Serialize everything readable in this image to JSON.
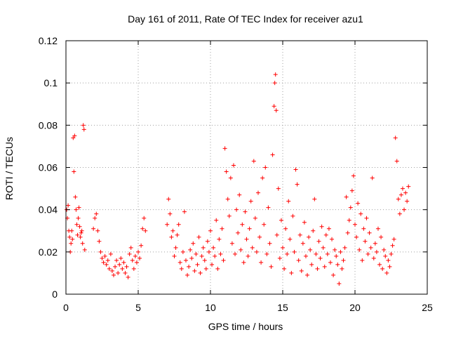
{
  "chart_data": {
    "type": "scatter",
    "title": "Day 161 of 2011, Rate Of TEC Index for receiver azu1",
    "xlabel": "GPS time / hours",
    "ylabel": "ROTI / TECUs",
    "xlim": [
      0,
      25
    ],
    "ylim": [
      0,
      0.12
    ],
    "x_ticks": [
      "0",
      "5",
      "10",
      "15",
      "20",
      "25"
    ],
    "y_ticks": [
      "0",
      "0.02",
      "0.04",
      "0.06",
      "0.08",
      "0.1",
      "0.12"
    ],
    "grid": true,
    "marker": "+",
    "colors": {
      "series": "#ff0000",
      "grid": "#a0a0a0",
      "axes": "#000000"
    },
    "series": [
      {
        "points": [
          [
            0.05,
            0.04
          ],
          [
            0.1,
            0.036
          ],
          [
            0.15,
            0.042
          ],
          [
            0.2,
            0.03
          ],
          [
            0.25,
            0.027
          ],
          [
            0.3,
            0.02
          ],
          [
            0.35,
            0.024
          ],
          [
            0.4,
            0.03
          ],
          [
            0.45,
            0.026
          ],
          [
            0.5,
            0.074
          ],
          [
            0.55,
            0.058
          ],
          [
            0.6,
            0.075
          ],
          [
            0.65,
            0.046
          ],
          [
            0.7,
            0.04
          ],
          [
            0.75,
            0.033
          ],
          [
            0.8,
            0.028
          ],
          [
            0.85,
            0.036
          ],
          [
            0.9,
            0.041
          ],
          [
            0.95,
            0.032
          ],
          [
            1.0,
            0.027
          ],
          [
            1.05,
            0.029
          ],
          [
            1.1,
            0.03
          ],
          [
            1.15,
            0.024
          ],
          [
            1.2,
            0.08
          ],
          [
            1.25,
            0.078
          ],
          [
            1.3,
            0.021
          ],
          [
            1.9,
            0.031
          ],
          [
            2.0,
            0.036
          ],
          [
            2.1,
            0.038
          ],
          [
            2.2,
            0.03
          ],
          [
            2.3,
            0.025
          ],
          [
            2.4,
            0.02
          ],
          [
            2.5,
            0.017
          ],
          [
            2.6,
            0.015
          ],
          [
            2.7,
            0.018
          ],
          [
            2.8,
            0.014
          ],
          [
            2.9,
            0.016
          ],
          [
            3.0,
            0.012
          ],
          [
            3.1,
            0.019
          ],
          [
            3.2,
            0.011
          ],
          [
            3.3,
            0.009
          ],
          [
            3.4,
            0.013
          ],
          [
            3.5,
            0.016
          ],
          [
            3.6,
            0.01
          ],
          [
            3.7,
            0.014
          ],
          [
            3.8,
            0.017
          ],
          [
            3.9,
            0.012
          ],
          [
            4.0,
            0.015
          ],
          [
            4.1,
            0.01
          ],
          [
            4.2,
            0.013
          ],
          [
            4.3,
            0.008
          ],
          [
            4.4,
            0.019
          ],
          [
            4.5,
            0.022
          ],
          [
            4.6,
            0.016
          ],
          [
            4.7,
            0.012
          ],
          [
            4.8,
            0.018
          ],
          [
            4.9,
            0.015
          ],
          [
            5.0,
            0.02
          ],
          [
            5.1,
            0.017
          ],
          [
            5.2,
            0.023
          ],
          [
            5.3,
            0.031
          ],
          [
            5.4,
            0.036
          ],
          [
            5.5,
            0.03
          ],
          [
            7.0,
            0.033
          ],
          [
            7.1,
            0.045
          ],
          [
            7.2,
            0.038
          ],
          [
            7.3,
            0.027
          ],
          [
            7.4,
            0.03
          ],
          [
            7.5,
            0.018
          ],
          [
            7.6,
            0.022
          ],
          [
            7.7,
            0.028
          ],
          [
            7.8,
            0.033
          ],
          [
            7.9,
            0.015
          ],
          [
            8.0,
            0.012
          ],
          [
            8.1,
            0.02
          ],
          [
            8.2,
            0.039
          ],
          [
            8.3,
            0.016
          ],
          [
            8.4,
            0.009
          ],
          [
            8.5,
            0.013
          ],
          [
            8.6,
            0.021
          ],
          [
            8.7,
            0.017
          ],
          [
            8.8,
            0.024
          ],
          [
            8.9,
            0.011
          ],
          [
            9.0,
            0.019
          ],
          [
            9.1,
            0.014
          ],
          [
            9.2,
            0.027
          ],
          [
            9.3,
            0.01
          ],
          [
            9.4,
            0.018
          ],
          [
            9.5,
            0.022
          ],
          [
            9.6,
            0.016
          ],
          [
            9.7,
            0.012
          ],
          [
            9.8,
            0.025
          ],
          [
            9.9,
            0.02
          ],
          [
            10.0,
            0.03
          ],
          [
            10.1,
            0.014
          ],
          [
            10.2,
            0.022
          ],
          [
            10.3,
            0.018
          ],
          [
            10.4,
            0.035
          ],
          [
            10.5,
            0.012
          ],
          [
            10.6,
            0.026
          ],
          [
            10.7,
            0.019
          ],
          [
            10.8,
            0.031
          ],
          [
            10.9,
            0.016
          ],
          [
            11.0,
            0.069
          ],
          [
            11.1,
            0.058
          ],
          [
            11.2,
            0.045
          ],
          [
            11.3,
            0.037
          ],
          [
            11.4,
            0.055
          ],
          [
            11.5,
            0.024
          ],
          [
            11.6,
            0.061
          ],
          [
            11.7,
            0.019
          ],
          [
            11.8,
            0.04
          ],
          [
            11.9,
            0.029
          ],
          [
            12.0,
            0.047
          ],
          [
            12.1,
            0.021
          ],
          [
            12.2,
            0.033
          ],
          [
            12.3,
            0.015
          ],
          [
            12.4,
            0.039
          ],
          [
            12.5,
            0.026
          ],
          [
            12.6,
            0.018
          ],
          [
            12.7,
            0.031
          ],
          [
            12.8,
            0.044
          ],
          [
            12.9,
            0.022
          ],
          [
            13.0,
            0.063
          ],
          [
            13.1,
            0.036
          ],
          [
            13.2,
            0.02
          ],
          [
            13.3,
            0.048
          ],
          [
            13.4,
            0.027
          ],
          [
            13.5,
            0.015
          ],
          [
            13.6,
            0.055
          ],
          [
            13.7,
            0.033
          ],
          [
            13.8,
            0.06
          ],
          [
            13.9,
            0.019
          ],
          [
            14.0,
            0.041
          ],
          [
            14.1,
            0.024
          ],
          [
            14.2,
            0.013
          ],
          [
            14.3,
            0.066
          ],
          [
            14.4,
            0.089
          ],
          [
            14.45,
            0.1
          ],
          [
            14.5,
            0.104
          ],
          [
            14.55,
            0.087
          ],
          [
            14.6,
            0.028
          ],
          [
            14.7,
            0.05
          ],
          [
            14.8,
            0.017
          ],
          [
            14.9,
            0.035
          ],
          [
            15.0,
            0.022
          ],
          [
            15.1,
            0.012
          ],
          [
            15.2,
            0.031
          ],
          [
            15.3,
            0.019
          ],
          [
            15.4,
            0.044
          ],
          [
            15.5,
            0.026
          ],
          [
            15.6,
            0.01
          ],
          [
            15.7,
            0.037
          ],
          [
            15.8,
            0.02
          ],
          [
            15.9,
            0.059
          ],
          [
            16.0,
            0.052
          ],
          [
            16.1,
            0.016
          ],
          [
            16.2,
            0.028
          ],
          [
            16.3,
            0.011
          ],
          [
            16.4,
            0.024
          ],
          [
            16.5,
            0.034
          ],
          [
            16.6,
            0.018
          ],
          [
            16.7,
            0.009
          ],
          [
            16.8,
            0.027
          ],
          [
            16.9,
            0.021
          ],
          [
            17.0,
            0.014
          ],
          [
            17.1,
            0.03
          ],
          [
            17.2,
            0.045
          ],
          [
            17.3,
            0.019
          ],
          [
            17.4,
            0.012
          ],
          [
            17.5,
            0.025
          ],
          [
            17.6,
            0.017
          ],
          [
            17.7,
            0.032
          ],
          [
            17.8,
            0.022
          ],
          [
            17.9,
            0.013
          ],
          [
            18.0,
            0.028
          ],
          [
            18.1,
            0.019
          ],
          [
            18.2,
            0.031
          ],
          [
            18.3,
            0.015
          ],
          [
            18.4,
            0.026
          ],
          [
            18.5,
            0.009
          ],
          [
            18.6,
            0.021
          ],
          [
            18.7,
            0.018
          ],
          [
            18.8,
            0.014
          ],
          [
            18.9,
            0.005
          ],
          [
            19.0,
            0.02
          ],
          [
            19.1,
            0.012
          ],
          [
            19.2,
            0.016
          ],
          [
            19.3,
            0.022
          ],
          [
            19.4,
            0.046
          ],
          [
            19.5,
            0.029
          ],
          [
            19.6,
            0.035
          ],
          [
            19.7,
            0.041
          ],
          [
            19.8,
            0.049
          ],
          [
            19.9,
            0.056
          ],
          [
            20.0,
            0.033
          ],
          [
            20.1,
            0.027
          ],
          [
            20.2,
            0.043
          ],
          [
            20.3,
            0.021
          ],
          [
            20.4,
            0.038
          ],
          [
            20.5,
            0.016
          ],
          [
            20.6,
            0.031
          ],
          [
            20.7,
            0.025
          ],
          [
            20.8,
            0.036
          ],
          [
            20.9,
            0.019
          ],
          [
            21.0,
            0.029
          ],
          [
            21.1,
            0.022
          ],
          [
            21.2,
            0.055
          ],
          [
            21.3,
            0.017
          ],
          [
            21.4,
            0.024
          ],
          [
            21.5,
            0.02
          ],
          [
            21.6,
            0.031
          ],
          [
            21.7,
            0.014
          ],
          [
            21.8,
            0.027
          ],
          [
            21.9,
            0.012
          ],
          [
            22.0,
            0.021
          ],
          [
            22.1,
            0.018
          ],
          [
            22.2,
            0.01
          ],
          [
            22.3,
            0.016
          ],
          [
            22.4,
            0.013
          ],
          [
            22.5,
            0.019
          ],
          [
            22.6,
            0.023
          ],
          [
            22.7,
            0.026
          ],
          [
            22.8,
            0.074
          ],
          [
            22.9,
            0.063
          ],
          [
            23.0,
            0.045
          ],
          [
            23.1,
            0.038
          ],
          [
            23.2,
            0.047
          ],
          [
            23.3,
            0.05
          ],
          [
            23.4,
            0.04
          ],
          [
            23.5,
            0.048
          ],
          [
            23.6,
            0.044
          ],
          [
            23.7,
            0.051
          ]
        ]
      }
    ]
  }
}
